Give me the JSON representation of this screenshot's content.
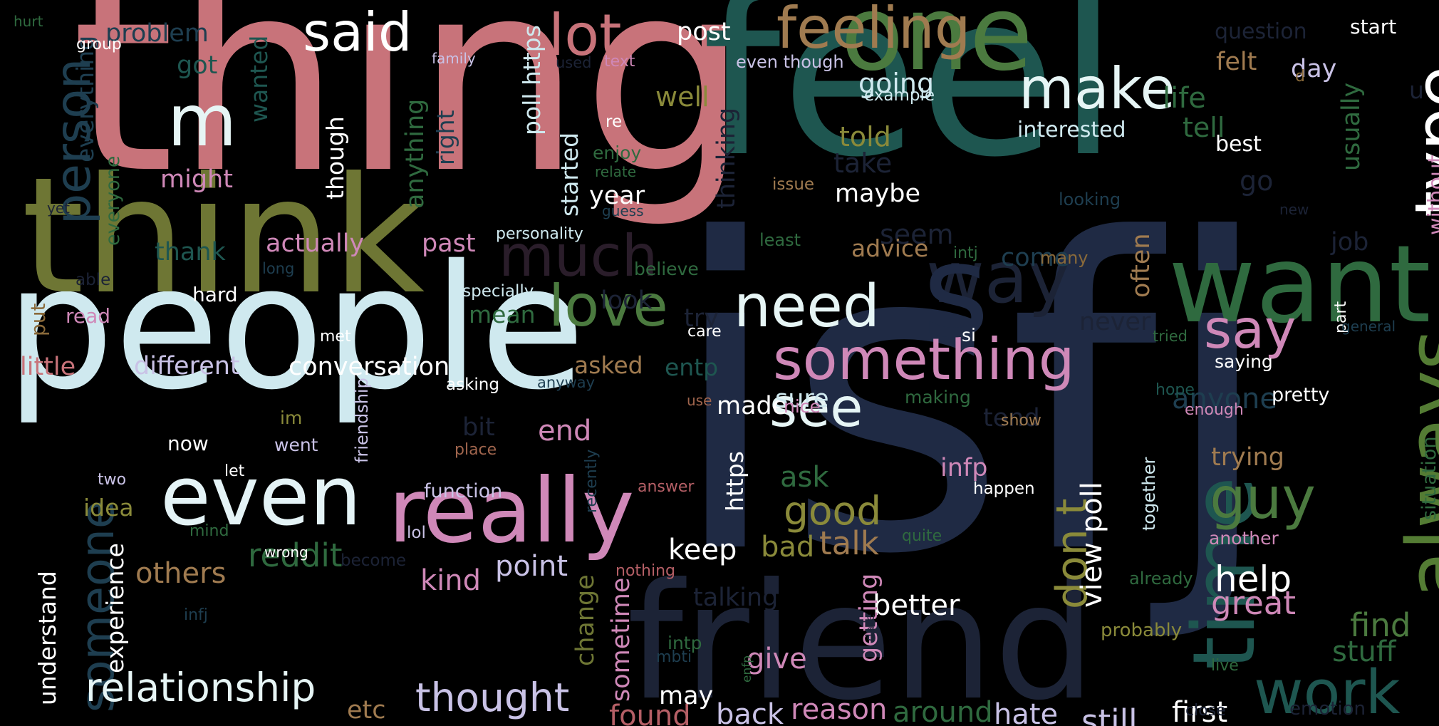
{
  "words": [
    {
      "text": "isfj",
      "color": "#1f2a44"
    },
    {
      "text": "thing",
      "color": "#c8737a"
    },
    {
      "text": "feel",
      "color": "#1e5650"
    },
    {
      "text": "people",
      "color": "#cfe9ef"
    },
    {
      "text": "think",
      "color": "#6e7634"
    },
    {
      "text": "friend",
      "color": "#1c2336"
    },
    {
      "text": "one",
      "color": "#4b7a3f"
    },
    {
      "text": "feeling",
      "color": "#a07b50"
    },
    {
      "text": "want",
      "color": "#2f6a3f"
    },
    {
      "text": "really",
      "color": "#cf88b8"
    },
    {
      "text": "even",
      "color": "#e4f3f6"
    },
    {
      "text": "time",
      "color": "#1e5650"
    },
    {
      "text": "always",
      "color": "#547c34"
    },
    {
      "text": "something",
      "color": "#cf88b8"
    },
    {
      "text": "need",
      "color": "#e6f5f5"
    },
    {
      "text": "love",
      "color": "#4b7a3f"
    },
    {
      "text": "see",
      "color": "#e6f5f5"
    },
    {
      "text": "lot",
      "color": "#c8737a"
    },
    {
      "text": "make",
      "color": "#e6f5f5"
    },
    {
      "text": "type",
      "color": "#ffffff"
    },
    {
      "text": "said",
      "color": "#ffffff"
    },
    {
      "text": "m",
      "color": "#e6f5f5"
    },
    {
      "text": "way",
      "color": "#1c2336"
    },
    {
      "text": "much",
      "color": "#2a1d2a"
    },
    {
      "text": "s",
      "color": "#1f2a44"
    },
    {
      "text": "say",
      "color": "#cf88b8"
    },
    {
      "text": "guy",
      "color": "#4b7a3f"
    },
    {
      "text": "work",
      "color": "#1e5650"
    },
    {
      "text": "person",
      "color": "#1e3e50"
    },
    {
      "text": "someone",
      "color": "#1e3e50"
    },
    {
      "text": "relationship",
      "color": "#e6f5f5"
    },
    {
      "text": "thought",
      "color": "#c9c2e6"
    },
    {
      "text": "don t",
      "color": "#8a8a3a"
    },
    {
      "text": "good",
      "color": "#8a8a3a"
    },
    {
      "text": "help",
      "color": "#ffffff"
    },
    {
      "text": "great",
      "color": "#cf88b8"
    },
    {
      "text": "find",
      "color": "#4b7a3f"
    },
    {
      "text": "stuff",
      "color": "#2f6a3f"
    },
    {
      "text": "view poll",
      "color": "#ffffff"
    },
    {
      "text": "still",
      "color": "#c9c2e6"
    },
    {
      "text": "first",
      "color": "#ffffff"
    },
    {
      "text": "hate",
      "color": "#c9c2e6"
    },
    {
      "text": "around",
      "color": "#2f6a3f"
    },
    {
      "text": "reason",
      "color": "#cf88b8"
    },
    {
      "text": "back",
      "color": "#c9c2e6"
    },
    {
      "text": "found",
      "color": "#b55f66"
    },
    {
      "text": "may",
      "color": "#ffffff"
    },
    {
      "text": "better",
      "color": "#ffffff"
    },
    {
      "text": "reddit",
      "color": "#2f6a3f"
    },
    {
      "text": "others",
      "color": "#a07b50"
    },
    {
      "text": "point",
      "color": "#c9c2e6"
    },
    {
      "text": "kind",
      "color": "#cf88b8"
    },
    {
      "text": "keep",
      "color": "#ffffff"
    },
    {
      "text": "talk",
      "color": "#a07b50"
    },
    {
      "text": "bad",
      "color": "#8a8a3a"
    },
    {
      "text": "ask",
      "color": "#2f6a3f"
    },
    {
      "text": "end",
      "color": "#cf88b8"
    },
    {
      "text": "made",
      "color": "#ffffff"
    },
    {
      "text": "sure",
      "color": "#cfe9ef"
    },
    {
      "text": "anyone",
      "color": "#1e3e50"
    },
    {
      "text": "tend",
      "color": "#1c2336"
    },
    {
      "text": "trying",
      "color": "#a07b50"
    },
    {
      "text": "infp",
      "color": "#cf88b8"
    },
    {
      "text": "conversation",
      "color": "#ffffff"
    },
    {
      "text": "different",
      "color": "#c9c2e6"
    },
    {
      "text": "little",
      "color": "#c8737a"
    },
    {
      "text": "actually",
      "color": "#cf88b8"
    },
    {
      "text": "past",
      "color": "#cf88b8"
    },
    {
      "text": "thank",
      "color": "#1e5650"
    },
    {
      "text": "might",
      "color": "#cf88b8"
    },
    {
      "text": "got",
      "color": "#1e5650"
    },
    {
      "text": "problem",
      "color": "#1e3e50"
    },
    {
      "text": "well",
      "color": "#8a8a3a"
    },
    {
      "text": "post",
      "color": "#ffffff"
    },
    {
      "text": "going",
      "color": "#cfe9ef"
    },
    {
      "text": "told",
      "color": "#8a8a3a"
    },
    {
      "text": "take",
      "color": "#1c2336"
    },
    {
      "text": "maybe",
      "color": "#ffffff"
    },
    {
      "text": "seem",
      "color": "#1c2336"
    },
    {
      "text": "advice",
      "color": "#a07b50"
    },
    {
      "text": "come",
      "color": "#1e3e50"
    },
    {
      "text": "life",
      "color": "#2f6a3f"
    },
    {
      "text": "tell",
      "color": "#2f6a3f"
    },
    {
      "text": "interested",
      "color": "#cfe9ef"
    },
    {
      "text": "best",
      "color": "#ffffff"
    },
    {
      "text": "go",
      "color": "#1c2336"
    },
    {
      "text": "felt",
      "color": "#a07b50"
    },
    {
      "text": "day",
      "color": "#c9c2e6"
    },
    {
      "text": "question",
      "color": "#1c2336"
    },
    {
      "text": "start",
      "color": "#ffffff"
    },
    {
      "text": "job",
      "color": "#1c2336"
    },
    {
      "text": "u",
      "color": "#1c2336"
    },
    {
      "text": "usually",
      "color": "#2f6a3f"
    },
    {
      "text": "without",
      "color": "#cf88b8"
    },
    {
      "text": "often",
      "color": "#a07b50"
    },
    {
      "text": "never",
      "color": "#1c2336"
    },
    {
      "text": "look",
      "color": "#1c2336"
    },
    {
      "text": "try",
      "color": "#1c2336"
    },
    {
      "text": "mean",
      "color": "#2f6a3f"
    },
    {
      "text": "asked",
      "color": "#a07b50"
    },
    {
      "text": "entp",
      "color": "#1e5650"
    },
    {
      "text": "hard",
      "color": "#ffffff"
    },
    {
      "text": "put",
      "color": "#8a6a3a"
    },
    {
      "text": "read",
      "color": "#cf88b8"
    },
    {
      "text": "bit",
      "color": "#1c2336"
    },
    {
      "text": "now",
      "color": "#ffffff"
    },
    {
      "text": "im",
      "color": "#8a8a3a"
    },
    {
      "text": "went",
      "color": "#c9c2e6"
    },
    {
      "text": "idea",
      "color": "#8a8a3a"
    },
    {
      "text": "two",
      "color": "#c9c2e6"
    },
    {
      "text": "let",
      "color": "#ffffff"
    },
    {
      "text": "experience",
      "color": "#ffffff"
    },
    {
      "text": "understand",
      "color": "#ffffff"
    },
    {
      "text": "etc",
      "color": "#a07b50"
    },
    {
      "text": "give",
      "color": "#cf88b8"
    },
    {
      "text": "getting",
      "color": "#cf88b8"
    },
    {
      "text": "talking",
      "color": "#1c2336"
    },
    {
      "text": "change",
      "color": "#6e7634"
    },
    {
      "text": "sometime",
      "color": "#cf88b8"
    },
    {
      "text": "intp",
      "color": "#2f6a3f"
    },
    {
      "text": "https",
      "color": "#ffffff"
    },
    {
      "text": "function",
      "color": "#c9c2e6"
    },
    {
      "text": "lol",
      "color": "#c9c2e6"
    },
    {
      "text": "answer",
      "color": "#b55f66"
    },
    {
      "text": "nothing",
      "color": "#b55f66"
    },
    {
      "text": "friendship",
      "color": "#c9c2e6"
    },
    {
      "text": "place",
      "color": "#a0654d"
    },
    {
      "text": "asking",
      "color": "#ffffff"
    },
    {
      "text": "met",
      "color": "#ffffff"
    },
    {
      "text": "care",
      "color": "#ffffff"
    },
    {
      "text": "use",
      "color": "#a0654d"
    },
    {
      "text": "nice",
      "color": "#cf88b8"
    },
    {
      "text": "anyway",
      "color": "#1e3e50"
    },
    {
      "text": "making",
      "color": "#2f6a3f"
    },
    {
      "text": "hope",
      "color": "#1e5650"
    },
    {
      "text": "show",
      "color": "#a07b50"
    },
    {
      "text": "enough",
      "color": "#cf88b8"
    },
    {
      "text": "pretty",
      "color": "#ffffff"
    },
    {
      "text": "happen",
      "color": "#ffffff"
    },
    {
      "text": "together",
      "color": "#cfe9ef"
    },
    {
      "text": "another",
      "color": "#cf88b8"
    },
    {
      "text": "already",
      "color": "#2f6a3f"
    },
    {
      "text": "quite",
      "color": "#2f6a3f"
    },
    {
      "text": "probably",
      "color": "#8a8a3a"
    },
    {
      "text": "saying",
      "color": "#ffffff"
    },
    {
      "text": "situation",
      "color": "#2f6a3f"
    },
    {
      "text": "tried",
      "color": "#2f6a3f"
    },
    {
      "text": "si",
      "color": "#ffffff"
    },
    {
      "text": "part",
      "color": "#ffffff"
    },
    {
      "text": "general",
      "color": "#1e3e50"
    },
    {
      "text": "intj",
      "color": "#2f6a3f"
    },
    {
      "text": "many",
      "color": "#8a6a3a"
    },
    {
      "text": "least",
      "color": "#2f6a3f"
    },
    {
      "text": "believe",
      "color": "#2f6a3f"
    },
    {
      "text": "especially",
      "color": "#cfe9ef"
    },
    {
      "text": "personality",
      "color": "#cfe9ef"
    },
    {
      "text": "guess",
      "color": "#1e3e50"
    },
    {
      "text": "issue",
      "color": "#a07b50"
    },
    {
      "text": "relate",
      "color": "#2f6a3f"
    },
    {
      "text": "enjoy",
      "color": "#2f6a3f"
    },
    {
      "text": "year",
      "color": "#ffffff"
    },
    {
      "text": "re",
      "color": "#ffffff"
    },
    {
      "text": "poll https",
      "color": "#cfe9ef"
    },
    {
      "text": "started",
      "color": "#cfe9ef"
    },
    {
      "text": "thinking",
      "color": "#1c2336"
    },
    {
      "text": "right",
      "color": "#1e3e50"
    },
    {
      "text": "anything",
      "color": "#2f6a3f"
    },
    {
      "text": "though",
      "color": "#ffffff"
    },
    {
      "text": "wanted",
      "color": "#1e5650"
    },
    {
      "text": "everything",
      "color": "#1e3e50"
    },
    {
      "text": "everyone",
      "color": "#2f6a3f"
    },
    {
      "text": "yet",
      "color": "#1c2336"
    },
    {
      "text": "able",
      "color": "#1c2336"
    },
    {
      "text": "long",
      "color": "#1e3e50"
    },
    {
      "text": "hurt",
      "color": "#2f6a3f"
    },
    {
      "text": "group",
      "color": "#ffffff"
    },
    {
      "text": "family",
      "color": "#c9c2e6"
    },
    {
      "text": "used",
      "color": "#1c2336"
    },
    {
      "text": "text",
      "color": "#cf88b8"
    },
    {
      "text": "even though",
      "color": "#c9c2e6"
    },
    {
      "text": "example",
      "color": "#cfe9ef"
    },
    {
      "text": "d",
      "color": "#8a6a3a"
    },
    {
      "text": "looking",
      "color": "#1e3e50"
    },
    {
      "text": "new",
      "color": "#1c2336"
    },
    {
      "text": "mind",
      "color": "#2f6a3f"
    },
    {
      "text": "wrong",
      "color": "#ffffff"
    },
    {
      "text": "become",
      "color": "#1c2336"
    },
    {
      "text": "infj",
      "color": "#1e3e50"
    },
    {
      "text": "recently",
      "color": "#1e3e50"
    },
    {
      "text": "mbti",
      "color": "#1e3e50"
    },
    {
      "text": "enfp",
      "color": "#2f6a3f"
    },
    {
      "text": "date",
      "color": "#1c2336"
    },
    {
      "text": "live",
      "color": "#2f6a3f"
    },
    {
      "text": "close",
      "color": "#1c2336"
    },
    {
      "text": "emotion",
      "color": "#1c2336"
    }
  ]
}
